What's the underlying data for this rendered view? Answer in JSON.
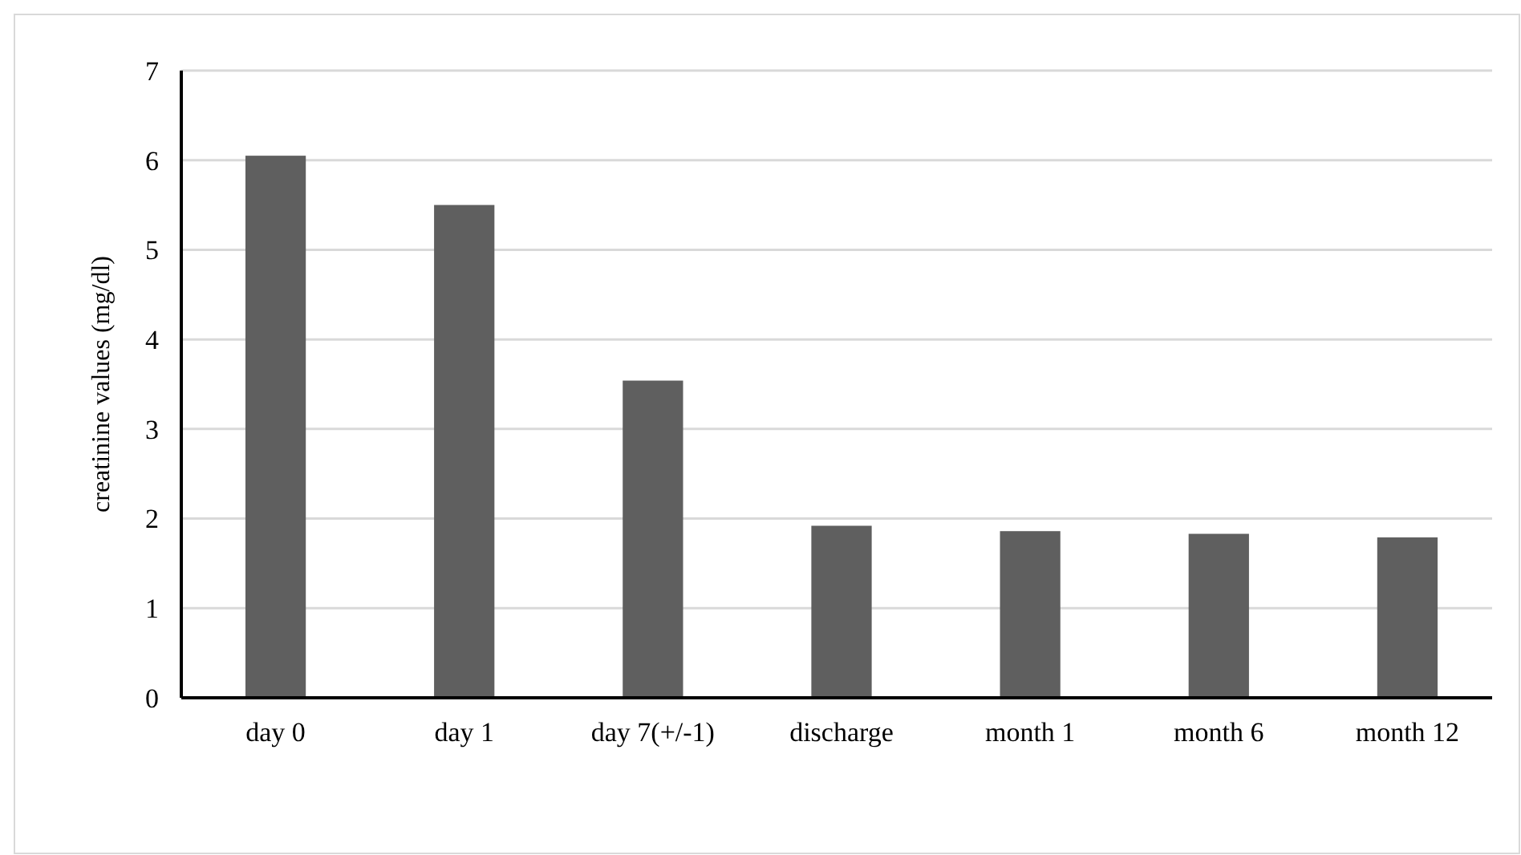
{
  "chart_data": {
    "type": "bar",
    "ylabel": "creatinine values (mg/dl)",
    "categories": [
      "day 0",
      "day 1",
      "day 7(+/-1)",
      "discharge",
      "month 1",
      "month 6",
      "month 12"
    ],
    "values": [
      6.05,
      5.5,
      3.54,
      1.92,
      1.86,
      1.83,
      1.79
    ],
    "color": "#5f5f5f",
    "ylim": [
      0,
      7
    ],
    "yticks": [
      0,
      1,
      2,
      3,
      4,
      5,
      6,
      7
    ],
    "grid": "y"
  }
}
